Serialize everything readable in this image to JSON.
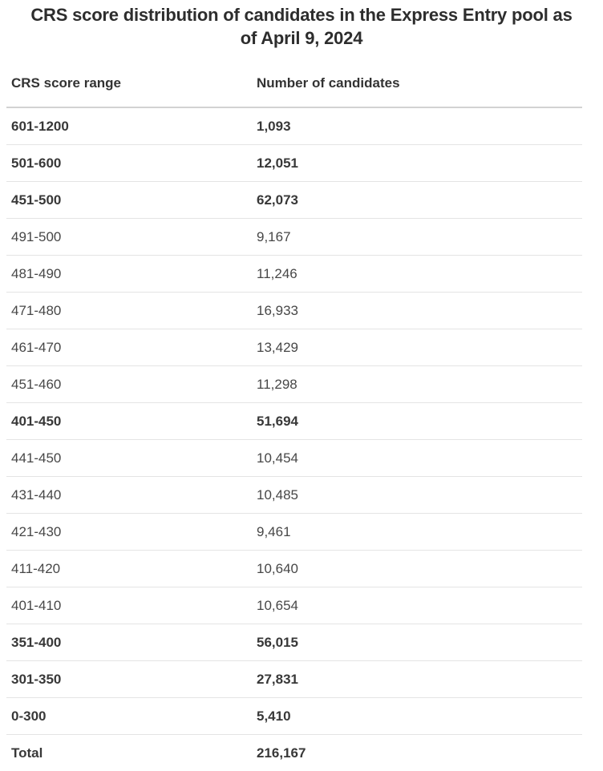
{
  "title": "CRS score distribution of candidates in the Express Entry pool as of April 9, 2024",
  "table": {
    "header": {
      "range_label": "CRS score range",
      "count_label": "Number of candidates"
    },
    "rows": [
      {
        "range": "601-1200",
        "count": "1,093",
        "bold": true,
        "total": false
      },
      {
        "range": "501-600",
        "count": "12,051",
        "bold": true,
        "total": false
      },
      {
        "range": "451-500",
        "count": "62,073",
        "bold": true,
        "total": false
      },
      {
        "range": "491-500",
        "count": "9,167",
        "bold": false,
        "total": false
      },
      {
        "range": "481-490",
        "count": "11,246",
        "bold": false,
        "total": false
      },
      {
        "range": "471-480",
        "count": "16,933",
        "bold": false,
        "total": false
      },
      {
        "range": "461-470",
        "count": "13,429",
        "bold": false,
        "total": false
      },
      {
        "range": "451-460",
        "count": "11,298",
        "bold": false,
        "total": false
      },
      {
        "range": "401-450",
        "count": "51,694",
        "bold": true,
        "total": false
      },
      {
        "range": "441-450",
        "count": "10,454",
        "bold": false,
        "total": false
      },
      {
        "range": "431-440",
        "count": "10,485",
        "bold": false,
        "total": false
      },
      {
        "range": "421-430",
        "count": "9,461",
        "bold": false,
        "total": false
      },
      {
        "range": "411-420",
        "count": "10,640",
        "bold": false,
        "total": false
      },
      {
        "range": "401-410",
        "count": "10,654",
        "bold": false,
        "total": false
      },
      {
        "range": "351-400",
        "count": "56,015",
        "bold": true,
        "total": false
      },
      {
        "range": "301-350",
        "count": "27,831",
        "bold": true,
        "total": false
      },
      {
        "range": "0-300",
        "count": "5,410",
        "bold": true,
        "total": false
      },
      {
        "range": "Total",
        "count": "216,167",
        "bold": true,
        "total": true
      }
    ]
  },
  "chart_data": {
    "type": "table",
    "title": "CRS score distribution of candidates in the Express Entry pool as of April 9, 2024",
    "columns": [
      "CRS score range",
      "Number of candidates"
    ],
    "rows": [
      [
        "601-1200",
        1093
      ],
      [
        "501-600",
        12051
      ],
      [
        "451-500",
        62073
      ],
      [
        "491-500",
        9167
      ],
      [
        "481-490",
        11246
      ],
      [
        "471-480",
        16933
      ],
      [
        "461-470",
        13429
      ],
      [
        "451-460",
        11298
      ],
      [
        "401-450",
        51694
      ],
      [
        "441-450",
        10454
      ],
      [
        "431-440",
        10485
      ],
      [
        "421-430",
        9461
      ],
      [
        "411-420",
        10640
      ],
      [
        "401-410",
        10654
      ],
      [
        "351-400",
        56015
      ],
      [
        "301-350",
        27831
      ],
      [
        "0-300",
        5410
      ],
      [
        "Total",
        216167
      ]
    ],
    "summary_band_rows": [
      "601-1200",
      "501-600",
      "451-500",
      "401-450",
      "351-400",
      "301-350",
      "0-300",
      "Total"
    ],
    "total": 216167
  },
  "colors": {
    "background": "#ffffff",
    "title_text": "#2d2d2d",
    "header_text": "#333333",
    "bold_row_text": "#383838",
    "regular_row_text": "#474747",
    "header_border": "#d2d2d2",
    "row_border": "#e4e4e4"
  }
}
